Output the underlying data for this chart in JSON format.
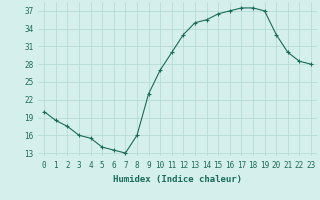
{
  "x": [
    0,
    1,
    2,
    3,
    4,
    5,
    6,
    7,
    8,
    9,
    10,
    11,
    12,
    13,
    14,
    15,
    16,
    17,
    18,
    19,
    20,
    21,
    22,
    23
  ],
  "y": [
    20,
    18.5,
    17.5,
    16,
    15.5,
    14,
    13.5,
    13,
    16,
    23,
    27,
    30,
    33,
    35,
    35.5,
    36.5,
    37,
    37.5,
    37.5,
    37,
    33,
    30,
    28.5,
    28
  ],
  "line_color": "#1a6b5a",
  "marker": "+",
  "bg_color": "#d5f0ec",
  "grid_color": "#b0d8d0",
  "xlabel": "Humidex (Indice chaleur)",
  "xlim": [
    -0.5,
    23.5
  ],
  "ylim": [
    12.5,
    38.5
  ],
  "yticks": [
    13,
    16,
    19,
    22,
    25,
    28,
    31,
    34,
    37
  ],
  "xtick_labels": [
    "0",
    "1",
    "2",
    "3",
    "4",
    "5",
    "6",
    "7",
    "8",
    "9",
    "10",
    "11",
    "12",
    "13",
    "14",
    "15",
    "16",
    "17",
    "18",
    "19",
    "20",
    "21",
    "22",
    "23"
  ],
  "label_fontsize": 6.5,
  "tick_fontsize": 5.5
}
